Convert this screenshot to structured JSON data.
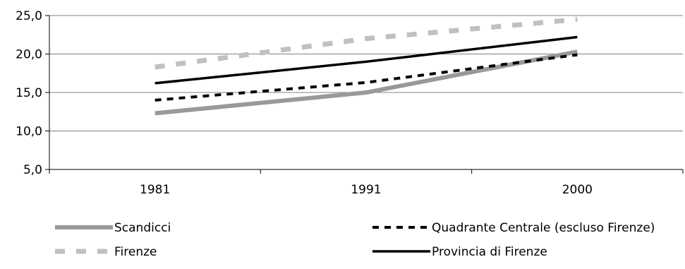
{
  "chart_data": {
    "type": "line",
    "categories": [
      "1981",
      "1991",
      "2000"
    ],
    "ylim": [
      5,
      25
    ],
    "yticks": [
      "5,0",
      "10,0",
      "15,0",
      "20,0",
      "25,0"
    ],
    "grid": true,
    "legend_position": "bottom",
    "series": [
      {
        "name": "Scandicci",
        "values": [
          12.3,
          15.0,
          20.3
        ],
        "color": "#999999",
        "style": "thick-solid"
      },
      {
        "name": "Quadrante Centrale (escluso Firenze)",
        "values": [
          14.0,
          16.3,
          19.9
        ],
        "color": "#000000",
        "style": "dashed"
      },
      {
        "name": "Firenze",
        "values": [
          18.3,
          22.0,
          24.5
        ],
        "color": "#c0c0c0",
        "style": "thick-dashed"
      },
      {
        "name": "Provincia di Firenze",
        "values": [
          16.2,
          19.0,
          22.2
        ],
        "color": "#000000",
        "style": "solid"
      }
    ]
  }
}
